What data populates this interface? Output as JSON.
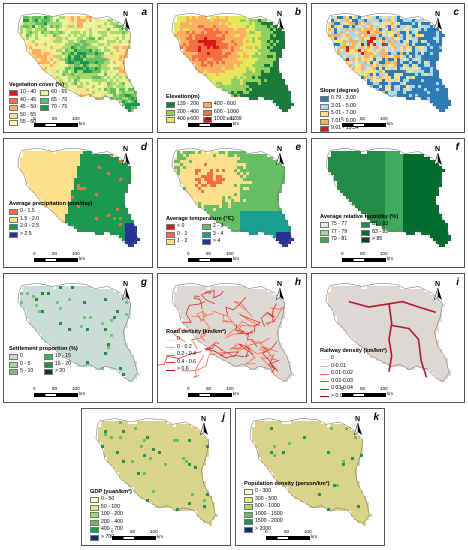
{
  "scale": {
    "ticks": [
      "0",
      "50",
      "100"
    ],
    "unit": "km"
  },
  "north_label": "N",
  "panels": [
    {
      "id": "a",
      "title": "Vegetation cover (%)",
      "cols": 2,
      "items": [
        {
          "label": "10 - 40",
          "color": "#d7191c"
        },
        {
          "label": "60 - 65",
          "color": "#e6f5a0"
        },
        {
          "label": "40 - 45",
          "color": "#f46d43"
        },
        {
          "label": "65 - 70",
          "color": "#66bd63"
        },
        {
          "label": "45 - 50",
          "color": "#fdae61"
        },
        {
          "label": "70 - 75",
          "color": "#1a9850"
        },
        {
          "label": "50 - 55",
          "color": "#fee08b"
        },
        {
          "label": "",
          "color": ""
        },
        {
          "label": "55 - 60",
          "color": "#ffffbf"
        }
      ]
    },
    {
      "id": "b",
      "title": "Elevation(m)",
      "cols": 2,
      "items": [
        {
          "label": "139 - 200",
          "color": "#1a7a3a"
        },
        {
          "label": "400 - 600",
          "color": "#fdae61"
        },
        {
          "label": "200 - 400",
          "color": "#91cf60"
        },
        {
          "label": "600 - 1000",
          "color": "#f46d43"
        },
        {
          "label": "400 - 600",
          "color": "#e6e65a"
        },
        {
          "label": "1000 - 1209",
          "color": "#d7191c"
        }
      ]
    },
    {
      "id": "c",
      "title": "Slope (degree)",
      "cols": 1,
      "items": [
        {
          "label": "0.79 - 3.00",
          "color": "#2c7bb6"
        },
        {
          "label": "3.01 - 5.00",
          "color": "#abd9e9"
        },
        {
          "label": "5.01 - 7.00",
          "color": "#fee08b"
        },
        {
          "label": "7.01 - 9.00",
          "color": "#fdae61"
        },
        {
          "label": "9.01 - 13.54",
          "color": "#d7191c"
        }
      ]
    },
    {
      "id": "d",
      "title": "Average precipitation (mm/day)",
      "cols": 1,
      "items": [
        {
          "label": "0 - 1.5",
          "color": "#f46d43"
        },
        {
          "label": "1.5 - 2.0",
          "color": "#fee08b"
        },
        {
          "label": "2.0 - 2.5",
          "color": "#1a9850"
        },
        {
          "label": "> 2.5",
          "color": "#253494"
        }
      ]
    },
    {
      "id": "e",
      "title": "Average temperature (℃)",
      "cols": 2,
      "items": [
        {
          "label": "< 0",
          "color": "#d7191c"
        },
        {
          "label": "2 - 3",
          "color": "#66bd63"
        },
        {
          "label": "0 - 1",
          "color": "#f46d43"
        },
        {
          "label": "3 - 4",
          "color": "#1a9e8f"
        },
        {
          "label": "1 - 2",
          "color": "#fee08b"
        },
        {
          "label": "> 4",
          "color": "#253494"
        }
      ]
    },
    {
      "id": "f",
      "title": "Average relative humidity (%)",
      "cols": 2,
      "items": [
        {
          "label": "75 - 77",
          "color": "#d9f0e3"
        },
        {
          "label": "81 - 83",
          "color": "#238b45"
        },
        {
          "label": "77 - 79",
          "color": "#a1d99b"
        },
        {
          "label": "83 - 85",
          "color": "#006d2c"
        },
        {
          "label": "79 - 81",
          "color": "#41ab5d"
        },
        {
          "label": "> 85",
          "color": "#00441b"
        }
      ]
    },
    {
      "id": "g",
      "title": "Settlement proportion (%)",
      "cols": 2,
      "items": [
        {
          "label": "0",
          "color": "#c9dcd6"
        },
        {
          "label": "10 - 15",
          "color": "#41ab5d"
        },
        {
          "label": "0 - 5",
          "color": "#a1d99b"
        },
        {
          "label": "15 - 20",
          "color": "#238b45"
        },
        {
          "label": "5 - 10",
          "color": "#74c476"
        },
        {
          "label": "> 20",
          "color": "#00441b"
        }
      ]
    },
    {
      "id": "h",
      "title": "Road density (km/km²)",
      "cols": 1,
      "line": true,
      "items": [
        {
          "label": "0",
          "color": "#fde0d0"
        },
        {
          "label": "0 - 0.2",
          "color": "#fcae91"
        },
        {
          "label": "0.2 - 0.4",
          "color": "#fb6a4a"
        },
        {
          "label": "0.4 - 0.6",
          "color": "#de2d26"
        },
        {
          "label": "> 0.6",
          "color": "#a50f15"
        }
      ]
    },
    {
      "id": "i",
      "title": "Railway density (km/km²)",
      "cols": 1,
      "line": true,
      "items": [
        {
          "label": "0",
          "color": "#fde0d0"
        },
        {
          "label": "0-0.01",
          "color": "#fcae91"
        },
        {
          "label": "0.01-0.02",
          "color": "#fb6a4a"
        },
        {
          "label": "0.02-0.03",
          "color": "#ef3b2c"
        },
        {
          "label": "0.03-0.04",
          "color": "#cb181d"
        },
        {
          "label": "> 0.04",
          "color": "#99000d"
        }
      ]
    },
    {
      "id": "j",
      "title": "GDP (yuan/km²)",
      "cols": 1,
      "items": [
        {
          "label": "0 - 50",
          "color": "#ffffbf"
        },
        {
          "label": "50 - 100",
          "color": "#d9ef8b"
        },
        {
          "label": "100 - 200",
          "color": "#a6d96a"
        },
        {
          "label": "200 - 400",
          "color": "#66bd63"
        },
        {
          "label": "400 - 700",
          "color": "#1a9850"
        },
        {
          "label": "> 700",
          "color": "#08306b"
        }
      ]
    },
    {
      "id": "k",
      "title": "Population density (person/km²)",
      "cols": 1,
      "items": [
        {
          "label": "0 - 300",
          "color": "#ffffbf"
        },
        {
          "label": "300 - 500",
          "color": "#d9ef8b"
        },
        {
          "label": "500 - 1000",
          "color": "#a6d96a"
        },
        {
          "label": "1000 - 1500",
          "color": "#66bd63"
        },
        {
          "label": "1500 - 2000",
          "color": "#1a9850"
        },
        {
          "label": "> 2000",
          "color": "#08306b"
        }
      ]
    }
  ]
}
